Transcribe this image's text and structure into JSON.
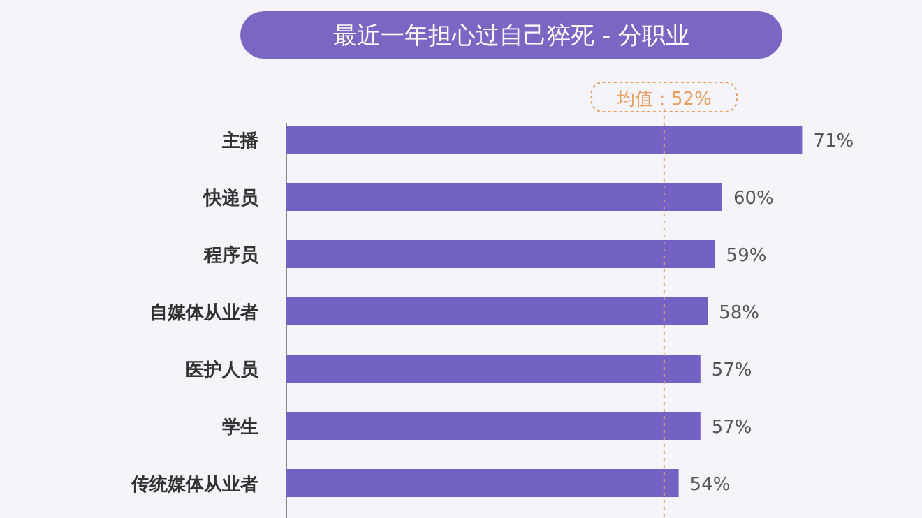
{
  "chart_data": {
    "type": "bar",
    "orientation": "horizontal",
    "title": "最近一年担心过自己猝死 - 分职业",
    "categories": [
      "主播",
      "快递员",
      "程序员",
      "自媒体从业者",
      "医护人员",
      "学生",
      "传统媒体从业者"
    ],
    "values": [
      71,
      60,
      59,
      58,
      57,
      57,
      54
    ],
    "value_labels": [
      "71%",
      "60%",
      "59%",
      "58%",
      "57%",
      "57%",
      "54%"
    ],
    "color": "#7461c4",
    "ref_lines": [
      {
        "axis": "x",
        "value": 52,
        "label": "均值：52%",
        "color": "#e8a060",
        "line_style": "dotted"
      }
    ]
  }
}
